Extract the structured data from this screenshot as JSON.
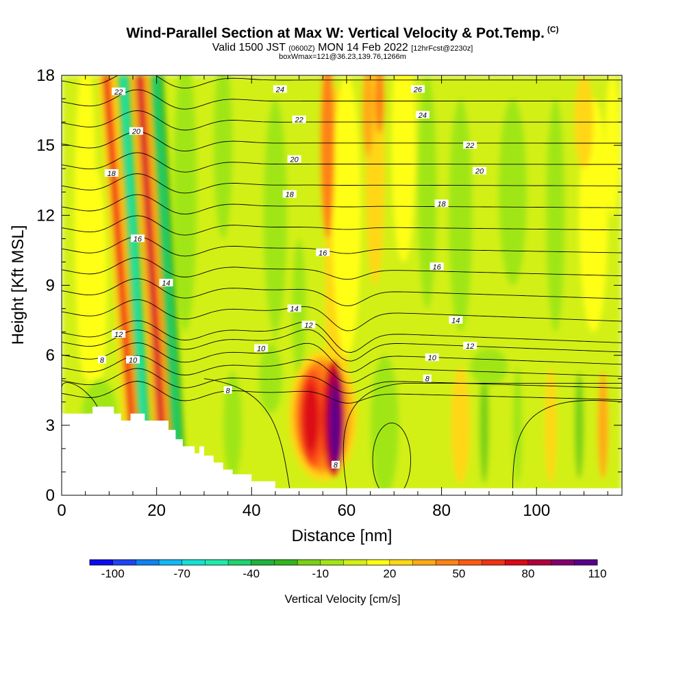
{
  "title": {
    "main": "Wind-Parallel Section at Max W: Vertical Velocity & Pot.Temp.",
    "copyright": "(C)",
    "valid_a": "Valid 1500 JST",
    "valid_utc": "(0600Z)",
    "valid_b": "MON 14 Feb 2022",
    "forecast": "[12hrFcst@2230z]",
    "box_info": "boxWmax=121@36.23,139.76,1266m"
  },
  "chart_data": {
    "type": "heatmap",
    "xlabel": "Distance [nm]",
    "ylabel": "Height [Kft MSL]",
    "xlim": [
      0,
      118
    ],
    "ylim": [
      0,
      18
    ],
    "x_ticks": [
      "0",
      "20",
      "40",
      "60",
      "80",
      "100"
    ],
    "x_tick_values": [
      0,
      20,
      40,
      60,
      80,
      100
    ],
    "y_ticks": [
      "0",
      "3",
      "6",
      "9",
      "12",
      "15",
      "18"
    ],
    "y_tick_values": [
      0,
      3,
      6,
      9,
      12,
      15,
      18
    ],
    "colorbar": {
      "label": "Vertical Velocity [cm/s]",
      "tick_labels": [
        "-100",
        "-70",
        "-40",
        "-10",
        "20",
        "50",
        "80",
        "110"
      ],
      "colors": [
        "#0a0af0",
        "#1e46f5",
        "#0f82f0",
        "#0fb9f5",
        "#14e1d2",
        "#1eebaa",
        "#1ed26e",
        "#1eb43c",
        "#32b41e",
        "#78d214",
        "#a0e614",
        "#d2f014",
        "#ffff14",
        "#ffd714",
        "#ffaa14",
        "#ff8214",
        "#ff5a14",
        "#f03214",
        "#dc0a14",
        "#b4003c",
        "#82006e",
        "#5a008c"
      ]
    },
    "vertical_velocity_features": [
      {
        "kind": "updraft_core",
        "x": 57.5,
        "z": 3.1,
        "value": 121
      },
      {
        "kind": "updraft",
        "x": 52.5,
        "z": 3.4,
        "value": 70
      },
      {
        "kind": "updraft_band",
        "x": 11.5,
        "value": 60
      },
      {
        "kind": "updraft_band",
        "x": 19.5,
        "value": 70
      },
      {
        "kind": "downdraft_band",
        "x": 14,
        "value": -60
      },
      {
        "kind": "downdraft_band",
        "x": 21.5,
        "value": -35
      }
    ],
    "theta_contour_labels": [
      {
        "text": "8",
        "x": 8.5,
        "z": 5.8
      },
      {
        "text": "8",
        "x": 35,
        "z": 4.5
      },
      {
        "text": "8",
        "x": 57.7,
        "z": 1.3
      },
      {
        "text": "8",
        "x": 77,
        "z": 5.0
      },
      {
        "text": "10",
        "x": 15,
        "z": 5.8
      },
      {
        "text": "10",
        "x": 42,
        "z": 6.3
      },
      {
        "text": "10",
        "x": 78,
        "z": 5.9
      },
      {
        "text": "12",
        "x": 12,
        "z": 6.9
      },
      {
        "text": "12",
        "x": 52,
        "z": 7.3
      },
      {
        "text": "12",
        "x": 86,
        "z": 6.4
      },
      {
        "text": "14",
        "x": 22,
        "z": 9.1
      },
      {
        "text": "14",
        "x": 49,
        "z": 8.0
      },
      {
        "text": "14",
        "x": 83,
        "z": 7.5
      },
      {
        "text": "16",
        "x": 16,
        "z": 11.0
      },
      {
        "text": "16",
        "x": 55,
        "z": 10.4
      },
      {
        "text": "16",
        "x": 79,
        "z": 9.8
      },
      {
        "text": "18",
        "x": 10.5,
        "z": 13.8
      },
      {
        "text": "18",
        "x": 48,
        "z": 12.9
      },
      {
        "text": "18",
        "x": 80,
        "z": 12.5
      },
      {
        "text": "20",
        "x": 15.7,
        "z": 15.6
      },
      {
        "text": "20",
        "x": 49,
        "z": 14.4
      },
      {
        "text": "20",
        "x": 88,
        "z": 13.9
      },
      {
        "text": "22",
        "x": 12,
        "z": 17.3
      },
      {
        "text": "22",
        "x": 50,
        "z": 16.1
      },
      {
        "text": "22",
        "x": 86,
        "z": 15.0
      },
      {
        "text": "24",
        "x": 46,
        "z": 17.4
      },
      {
        "text": "24",
        "x": 76,
        "z": 16.3
      },
      {
        "text": "26",
        "x": 75,
        "z": 17.4
      }
    ]
  }
}
